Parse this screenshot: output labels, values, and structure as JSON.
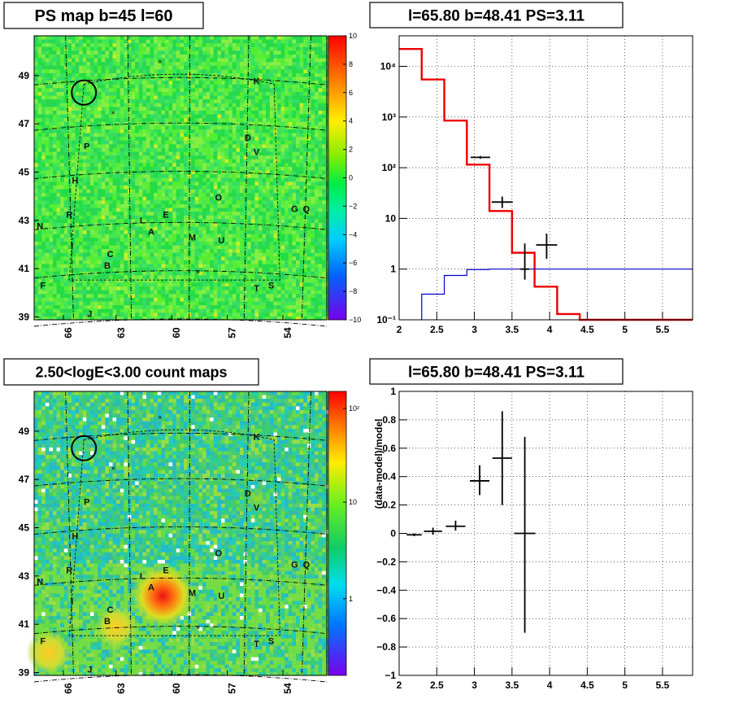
{
  "chart_data": [
    {
      "type": "heatmap",
      "title": "PS map b=45 l=60",
      "xtick_labels": [
        "66",
        "63",
        "60",
        "57",
        "54"
      ],
      "ytick_labels": [
        "49",
        "47",
        "45",
        "43",
        "41",
        "39"
      ],
      "colorbar": {
        "min": -10,
        "max": 10,
        "labels": [
          "10",
          "8",
          "6",
          "4",
          "2",
          "0",
          "−2",
          "−4",
          "−6",
          "−8",
          "−10"
        ]
      },
      "sources": [
        "K",
        "D",
        "V",
        "P",
        "H",
        "O",
        "G",
        "Q",
        "R",
        "N",
        "L",
        "E",
        "A",
        "M",
        "I",
        "C",
        "U",
        "B",
        "F",
        "T",
        "S",
        "J"
      ],
      "colors": {
        "background": "#33ee33",
        "circle": "#000000"
      }
    },
    {
      "type": "line",
      "title": "l=65.80 b=48.41 PS=3.11",
      "xlim": [
        2,
        5.9
      ],
      "ylim": [
        0.1,
        40000
      ],
      "yscale": "log",
      "grid": true,
      "xtick_labels": [
        "2",
        "2.5",
        "3",
        "3.5",
        "4",
        "4.5",
        "5",
        "5.5"
      ],
      "ytick_labels": [
        "10⁻¹",
        "1",
        "10",
        "10²",
        "10³",
        "10⁴"
      ],
      "series": [
        {
          "color": "#ee0000",
          "style": "step",
          "edges": [
            2,
            2.3,
            2.6,
            2.9,
            3.2,
            3.5,
            3.8,
            4.1,
            4.4,
            5.9
          ],
          "values": [
            22000,
            5500,
            850,
            115,
            14,
            2.1,
            0.45,
            0.13,
            0.1
          ]
        },
        {
          "color": "#0000cc",
          "style": "step",
          "edges": [
            2.3,
            2.6,
            2.9,
            3.2,
            5.9
          ],
          "values": [
            0.32,
            0.75,
            0.98,
            1.0
          ]
        },
        {
          "color": "#000000",
          "style": "errorbar",
          "points": [
            {
              "x": 3.08,
              "y": 160,
              "xerr": 0.13,
              "ylo": 150,
              "yhi": 170
            },
            {
              "x": 3.37,
              "y": 21,
              "xerr": 0.14,
              "ylo": 16,
              "yhi": 27
            },
            {
              "x": 3.67,
              "y": 1.0,
              "xerr": 0.06,
              "ylo": 0.62,
              "yhi": 3.2
            },
            {
              "x": 3.96,
              "y": 3.0,
              "xerr": 0.14,
              "ylo": 1.6,
              "yhi": 5.0
            }
          ]
        }
      ]
    },
    {
      "type": "heatmap",
      "title": "2.50<logE<3.00 count maps",
      "xtick_labels": [
        "66",
        "63",
        "60",
        "57",
        "54"
      ],
      "ytick_labels": [
        "49",
        "47",
        "45",
        "43",
        "41",
        "39"
      ],
      "colorbar": {
        "scale": "log",
        "labels": [
          "10²",
          "10",
          "1"
        ]
      },
      "sources": [
        "K",
        "D",
        "V",
        "P",
        "H",
        "O",
        "G",
        "Q",
        "R",
        "N",
        "L",
        "E",
        "A",
        "M",
        "I",
        "C",
        "U",
        "B",
        "F",
        "T",
        "S",
        "J"
      ],
      "colors": {
        "background": "#44cc88",
        "circle": "#000000"
      }
    },
    {
      "type": "scatter",
      "title": "l=65.80 b=48.41 PS=3.11",
      "ylabel": "(data-model)/model",
      "xlim": [
        2,
        5.9
      ],
      "ylim": [
        -1,
        1
      ],
      "grid": true,
      "xtick_labels": [
        "2",
        "2.5",
        "3",
        "3.5",
        "4",
        "4.5",
        "5",
        "5.5"
      ],
      "ytick_labels": [
        "−1",
        "−0.8",
        "−0.6",
        "−0.4",
        "−0.2",
        "0",
        "0.2",
        "0.4",
        "0.6",
        "0.8",
        "1"
      ],
      "series": [
        {
          "color": "#000000",
          "style": "errorbar",
          "points": [
            {
              "x": 2.2,
              "y": -0.01,
              "xerr": 0.1,
              "ylo": -0.02,
              "yhi": 0.0
            },
            {
              "x": 2.45,
              "y": 0.015,
              "xerr": 0.12,
              "ylo": -0.01,
              "yhi": 0.04
            },
            {
              "x": 2.75,
              "y": 0.05,
              "xerr": 0.13,
              "ylo": 0.02,
              "yhi": 0.09
            },
            {
              "x": 3.07,
              "y": 0.37,
              "xerr": 0.13,
              "ylo": 0.27,
              "yhi": 0.48
            },
            {
              "x": 3.37,
              "y": 0.53,
              "xerr": 0.13,
              "ylo": 0.2,
              "yhi": 0.86
            },
            {
              "x": 3.67,
              "y": 0.0,
              "xerr": 0.14,
              "ylo": -0.7,
              "yhi": 0.68
            }
          ]
        }
      ]
    }
  ]
}
